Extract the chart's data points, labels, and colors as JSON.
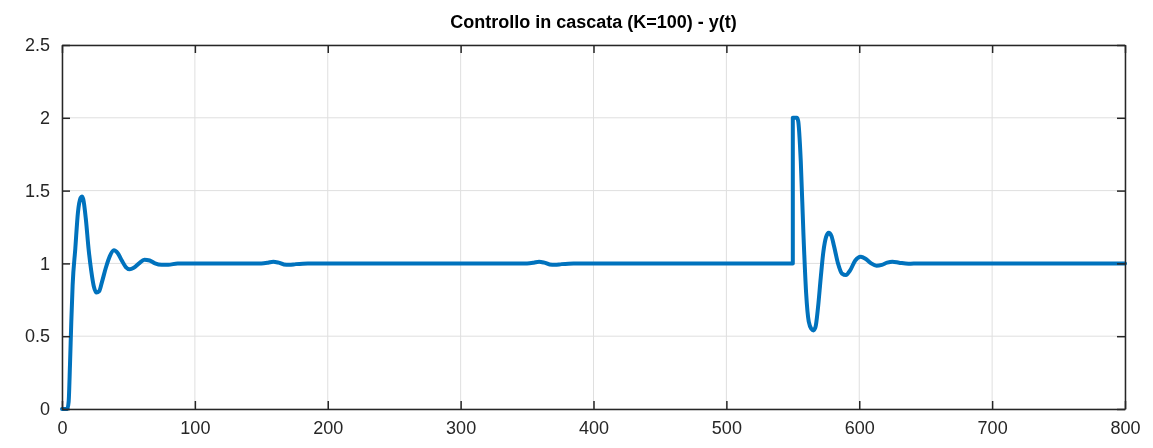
{
  "chart_data": {
    "type": "line",
    "title": "Controllo in cascata (K=100) - y(t)",
    "x": [
      0,
      2,
      4,
      5,
      6,
      7,
      8,
      10,
      12,
      14,
      15,
      16,
      18,
      20,
      22,
      24,
      26,
      28,
      30,
      33,
      36,
      39,
      42,
      45,
      48,
      51,
      54,
      58,
      62,
      66,
      70,
      75,
      80,
      87,
      100,
      150,
      155,
      159,
      163,
      167,
      171,
      176,
      185,
      350,
      355,
      359,
      363,
      367,
      371,
      376,
      385,
      550,
      550,
      553,
      554,
      556,
      558,
      560,
      562,
      564,
      565.5,
      567,
      569,
      571,
      573,
      575,
      577,
      579,
      581,
      584,
      587,
      590,
      593,
      597,
      601,
      605,
      609,
      613,
      617,
      621,
      625,
      630,
      637,
      645,
      800
    ],
    "values": [
      0,
      0,
      0,
      0.05,
      0.3,
      0.6,
      0.85,
      1.1,
      1.35,
      1.45,
      1.46,
      1.44,
      1.3,
      1.1,
      0.95,
      0.84,
      0.8,
      0.81,
      0.87,
      0.97,
      1.05,
      1.09,
      1.07,
      1.02,
      0.975,
      0.96,
      0.97,
      1.0,
      1.025,
      1.02,
      1.0,
      0.99,
      0.99,
      1.0,
      1.0,
      1.0,
      1.005,
      1.012,
      1.005,
      0.993,
      0.99,
      0.995,
      1.0,
      1.0,
      1.005,
      1.012,
      1.005,
      0.993,
      0.99,
      0.995,
      1.0,
      1.0,
      2.0,
      2.0,
      1.98,
      1.7,
      1.2,
      0.8,
      0.6,
      0.55,
      0.54,
      0.56,
      0.7,
      0.9,
      1.08,
      1.18,
      1.21,
      1.19,
      1.12,
      1.0,
      0.93,
      0.92,
      0.95,
      1.02,
      1.046,
      1.03,
      1.0,
      0.984,
      0.99,
      1.005,
      1.012,
      1.005,
      0.997,
      1.0,
      1.0
    ],
    "color": "#0072bd",
    "xlim": [
      0,
      800
    ],
    "ylim": [
      0,
      2.5
    ],
    "xticks": [
      0,
      100,
      200,
      300,
      400,
      500,
      600,
      700,
      800
    ],
    "yticks": [
      0,
      0.5,
      1,
      1.5,
      2,
      2.5
    ],
    "grid": true,
    "line_style": "solid"
  }
}
